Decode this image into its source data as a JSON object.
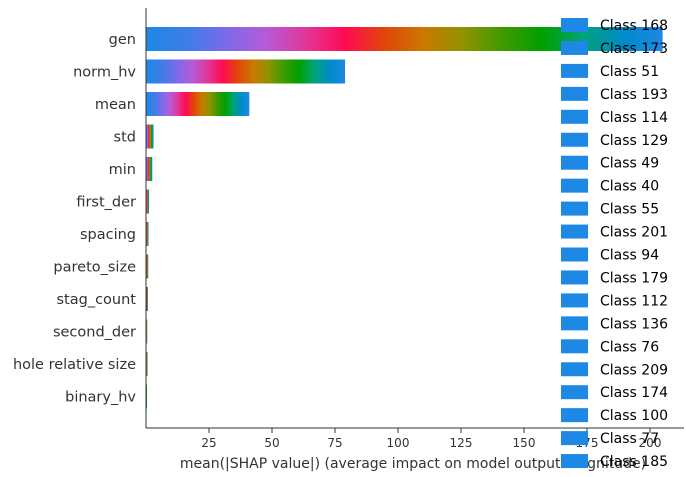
{
  "chart_data": {
    "type": "bar",
    "orientation": "horizontal",
    "stacked": true,
    "xlabel": "mean(|SHAP value|) (average impact on model output magnitude)",
    "xlim": [
      0,
      210
    ],
    "xticks": [
      25,
      50,
      75,
      100,
      125,
      150,
      175,
      200
    ],
    "grid": false,
    "legend_position": "right",
    "categories": [
      "gen",
      "norm_hv",
      "mean",
      "std",
      "min",
      "first_der",
      "spacing",
      "pareto_size",
      "stag_count",
      "second_der",
      "hole relative size",
      "binary_hv"
    ],
    "totals": [
      205,
      79,
      41,
      3,
      2.5,
      1.2,
      1.0,
      0.9,
      0.8,
      0.5,
      0.6,
      0.3
    ],
    "legend": [
      "Class 168",
      "Class 173",
      "Class 51",
      "Class 193",
      "Class 114",
      "Class 129",
      "Class 49",
      "Class 40",
      "Class 55",
      "Class 201",
      "Class 94",
      "Class 179",
      "Class 112",
      "Class 136",
      "Class 76",
      "Class 209",
      "Class 174",
      "Class 100",
      "Class 77",
      "Class 185"
    ],
    "legend_color": "#1e88e5",
    "gradient_colors": [
      "#1e88e5",
      "#3b7de8",
      "#7a6bea",
      "#b45bd8",
      "#e0389a",
      "#ff0a52",
      "#e2450a",
      "#c87a00",
      "#8f9300",
      "#3c9a00",
      "#00a000",
      "#00a37a",
      "#008bc8",
      "#1e88e5"
    ]
  }
}
